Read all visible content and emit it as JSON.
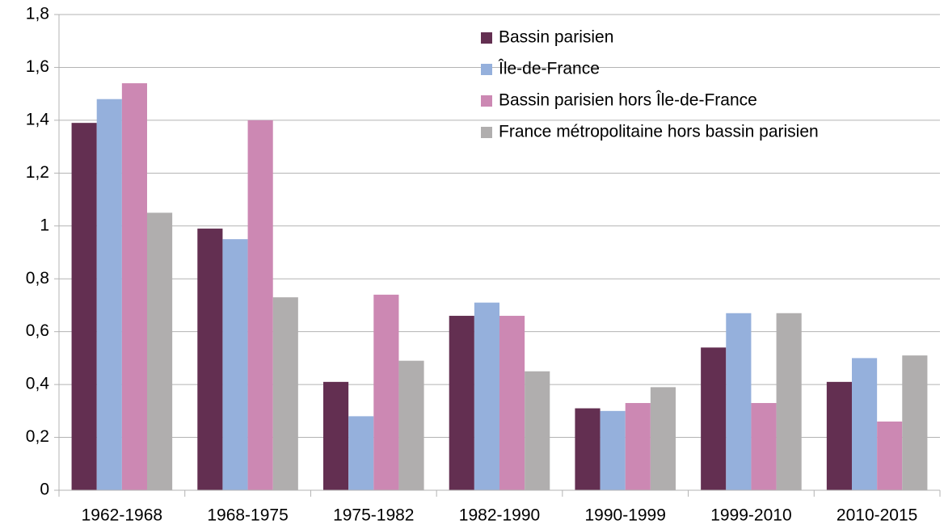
{
  "chart_data": {
    "type": "bar",
    "categories": [
      "1962-1968",
      "1968-1975",
      "1975-1982",
      "1982-1990",
      "1990-1999",
      "1999-2010",
      "2010-2015"
    ],
    "series": [
      {
        "name": "Bassin parisien",
        "color": "#632f51",
        "values": [
          1.39,
          0.99,
          0.41,
          0.66,
          0.31,
          0.54,
          0.41
        ]
      },
      {
        "name": "Île-de-France",
        "color": "#95b0dc",
        "values": [
          1.48,
          0.95,
          0.28,
          0.71,
          0.3,
          0.67,
          0.5
        ]
      },
      {
        "name": "Bassin parisien hors Île-de-France",
        "color": "#cc88b3",
        "values": [
          1.54,
          1.4,
          0.74,
          0.66,
          0.33,
          0.33,
          0.26
        ]
      },
      {
        "name": "France métropolitaine hors bassin parisien",
        "color": "#b0aeae",
        "values": [
          1.05,
          0.73,
          0.49,
          0.45,
          0.39,
          0.67,
          0.51
        ]
      }
    ],
    "ylim": [
      0,
      1.8
    ],
    "yticks": [
      0,
      {
        "value": 0.2,
        "label": "0,2"
      },
      {
        "value": 0.4,
        "label": "0,4"
      },
      {
        "value": 0.6,
        "label": "0,6"
      },
      {
        "value": 0.8,
        "label": "0,8"
      },
      1,
      {
        "value": 1.2,
        "label": "1,2"
      },
      {
        "value": 1.4,
        "label": "1,4"
      },
      {
        "value": 1.6,
        "label": "1,6"
      },
      {
        "value": 1.8,
        "label": "1,8"
      }
    ],
    "grid": true,
    "legend": "top-right"
  }
}
